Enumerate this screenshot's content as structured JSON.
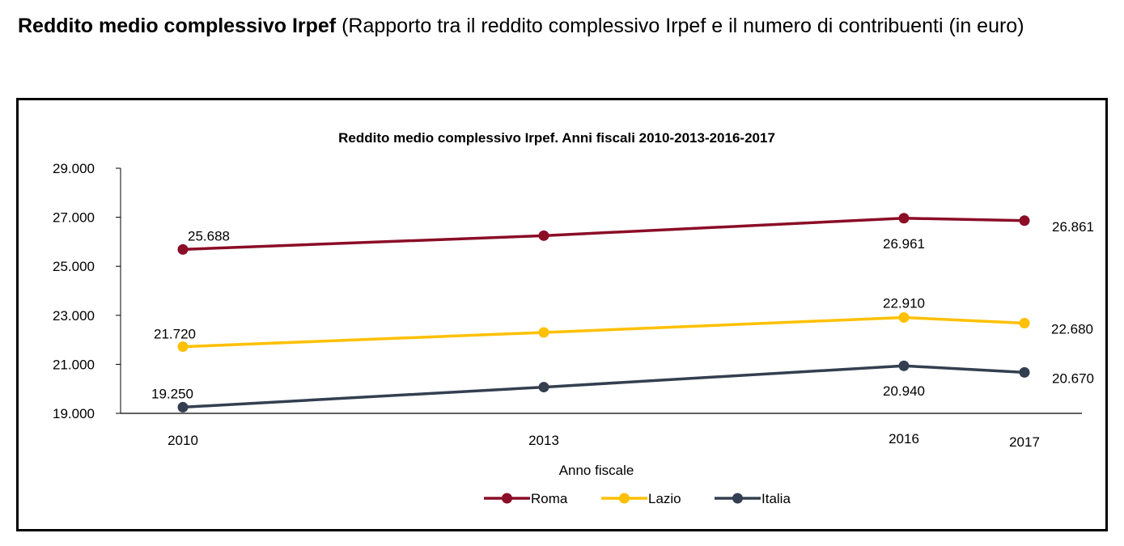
{
  "heading": {
    "bold": "Reddito medio complessivo Irpef",
    "rest": " (Rapporto tra il reddito complessivo Irpef e il numero di contribuenti (in euro)"
  },
  "chart_data": {
    "type": "line",
    "title": "Reddito medio complessivo Irpef. Anni fiscali 2010-2013-2016-2017",
    "xlabel": "Anno fiscale",
    "ylabel": "",
    "x": [
      2010,
      2013,
      2016,
      2017
    ],
    "x_tick_labels": [
      "2010",
      "2013",
      "2016",
      "2017"
    ],
    "ylim": [
      19000,
      29000
    ],
    "y_ticks": [
      19000,
      21000,
      23000,
      25000,
      27000,
      29000
    ],
    "y_tick_labels": [
      "19.000",
      "21.000",
      "23.000",
      "25.000",
      "27.000",
      "29.000"
    ],
    "grid": false,
    "legend_position": "bottom",
    "series": [
      {
        "name": "Roma",
        "color": "#8b0d26",
        "values": [
          25688,
          26250,
          26961,
          26861
        ],
        "labels": [
          "25.688",
          "",
          "26.961",
          "26.861"
        ]
      },
      {
        "name": "Lazio",
        "color": "#ffc000",
        "values": [
          21720,
          22300,
          22910,
          22680
        ],
        "labels": [
          "21.720",
          "",
          "22.910",
          "22.680"
        ]
      },
      {
        "name": "Italia",
        "color": "#333f50",
        "values": [
          19250,
          20070,
          20940,
          20670
        ],
        "labels": [
          "19.250",
          "",
          "20.940",
          "20.670"
        ]
      }
    ]
  }
}
